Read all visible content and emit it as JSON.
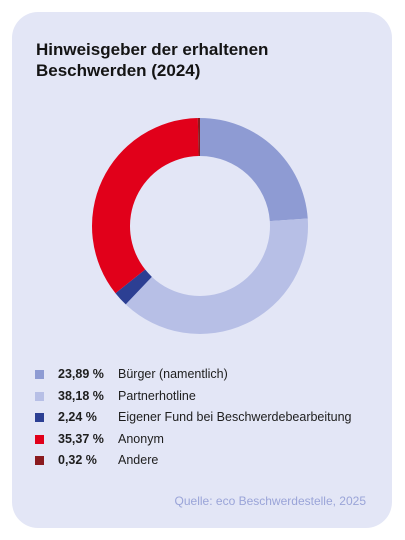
{
  "chart_data": {
    "type": "pie",
    "title_lines": [
      "Hinweisgeber der erhaltenen",
      "Beschwerden (2024)"
    ],
    "slices": [
      {
        "label": "Bürger (namentlich)",
        "value": 23.89,
        "display": "23,89 %",
        "color": "#8e9bd3"
      },
      {
        "label": "Partnerhotline",
        "value": 38.18,
        "display": "38,18 %",
        "color": "#b7bfe6"
      },
      {
        "label": "Eigener Fund bei Beschwerdebearbeitung",
        "value": 2.24,
        "display": "2,24 %",
        "color": "#2c3f93"
      },
      {
        "label": "Anonym",
        "value": 35.37,
        "display": "35,37 %",
        "color": "#e1001a"
      },
      {
        "label": "Andere",
        "value": 0.32,
        "display": "0,32 %",
        "color": "#8a1a1e"
      }
    ],
    "source": "Quelle: eco Beschwerdestelle, 2025"
  }
}
